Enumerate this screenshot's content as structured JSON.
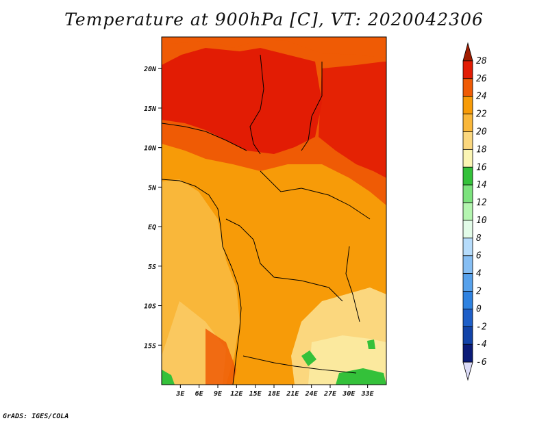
{
  "title": "Temperature at 900hPa [C], VT: 2020042306",
  "footer": "GrADS: IGES/COLA",
  "map": {
    "lon_range": [
      0,
      36
    ],
    "lat_range": [
      -20,
      24
    ],
    "lat_ticks": [
      {
        "value": 20,
        "label": "20N"
      },
      {
        "value": 15,
        "label": "15N"
      },
      {
        "value": 10,
        "label": "10N"
      },
      {
        "value": 5,
        "label": "5N"
      },
      {
        "value": 0,
        "label": "EQ"
      },
      {
        "value": -5,
        "label": "5S"
      },
      {
        "value": -10,
        "label": "10S"
      },
      {
        "value": -15,
        "label": "15S"
      }
    ],
    "lon_ticks": [
      {
        "value": 3,
        "label": "3E"
      },
      {
        "value": 6,
        "label": "6E"
      },
      {
        "value": 9,
        "label": "9E"
      },
      {
        "value": 12,
        "label": "12E"
      },
      {
        "value": 15,
        "label": "15E"
      },
      {
        "value": 18,
        "label": "18E"
      },
      {
        "value": 21,
        "label": "21E"
      },
      {
        "value": 24,
        "label": "24E"
      },
      {
        "value": 27,
        "label": "27E"
      },
      {
        "value": 30,
        "label": "30E"
      },
      {
        "value": 33,
        "label": "33E"
      }
    ]
  },
  "colorbar": {
    "levels": [
      "28",
      "26",
      "24",
      "22",
      "20",
      "18",
      "16",
      "14",
      "12",
      "10",
      "8",
      "6",
      "4",
      "2",
      "0",
      "-2",
      "-4",
      "-6"
    ],
    "colors": [
      "#a01c00",
      "#e21c04",
      "#ef5b05",
      "#f79b08",
      "#f9b73a",
      "#fbd77e",
      "#fbf5b4",
      "#34c13a",
      "#7ce27d",
      "#b4f5b0",
      "#e2fbe8",
      "#b6dcfb",
      "#86bef3",
      "#57a1eb",
      "#2f82e0",
      "#1e5fc8",
      "#1243a8",
      "#0b1b78",
      "#dcdcf8"
    ]
  }
}
